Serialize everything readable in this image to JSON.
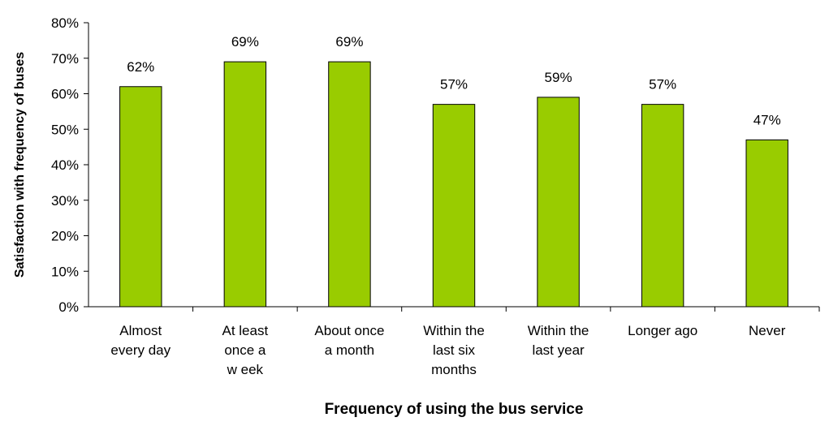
{
  "chart_data": {
    "type": "bar",
    "categories": [
      [
        "Almost",
        "every day"
      ],
      [
        "At least",
        "once a",
        "w eek"
      ],
      [
        "About once",
        "a month"
      ],
      [
        "Within the",
        "last six",
        "months"
      ],
      [
        "Within the",
        "last year"
      ],
      [
        "Longer ago"
      ],
      [
        "Never"
      ]
    ],
    "values": [
      62,
      69,
      69,
      57,
      59,
      57,
      47
    ],
    "data_labels": [
      "62%",
      "69%",
      "69%",
      "57%",
      "59%",
      "57%",
      "47%"
    ],
    "xlabel": "Frequency of using the bus service",
    "ylabel": "Satisfaction with frequency of buses",
    "ylim": [
      0,
      80
    ],
    "yticks": [
      0,
      10,
      20,
      30,
      40,
      50,
      60,
      70,
      80
    ],
    "ytick_labels": [
      "0%",
      "10%",
      "20%",
      "30%",
      "40%",
      "50%",
      "60%",
      "70%",
      "80%"
    ],
    "grid": false,
    "legend": "none",
    "bar_color": "#99cc00",
    "bar_edge_color": "#000000"
  }
}
